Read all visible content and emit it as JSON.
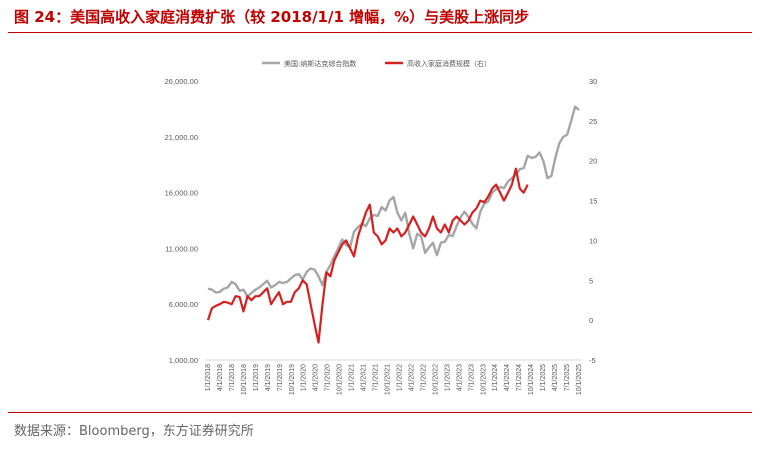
{
  "header": {
    "title": "图 24：美国高收入家庭消费扩张（较 2018/1/1 增幅，%）与美股上涨同步"
  },
  "footer": {
    "source": "数据来源：Bloomberg，东方证券研究所"
  },
  "colors": {
    "accent": "#c00000",
    "series_gray": "#a6a6a6",
    "series_red": "#d42020"
  },
  "chart_data": {
    "type": "line",
    "title": "",
    "xlabel": "",
    "ylabel": "",
    "legend_position": "top",
    "grid": false,
    "y_left": {
      "range": [
        1000,
        26000
      ],
      "ticks": [
        "1,000.00",
        "6,000.00",
        "11,000.00",
        "16,000.00",
        "21,000.00",
        "26,000.00"
      ]
    },
    "y_right": {
      "range": [
        -5,
        30
      ],
      "ticks": [
        "-5",
        "0",
        "5",
        "10",
        "15",
        "20",
        "25",
        "30"
      ]
    },
    "x_ticks": [
      "1/1/2018",
      "4/1/2018",
      "7/1/2018",
      "10/1/2018",
      "1/1/2019",
      "4/1/2019",
      "7/1/2019",
      "10/1/2019",
      "1/1/2020",
      "4/1/2020",
      "7/1/2020",
      "10/1/2020",
      "1/1/2021",
      "4/1/2021",
      "7/1/2021",
      "10/1/2021",
      "1/1/2022",
      "4/1/2022",
      "7/1/2022",
      "10/1/2022",
      "1/1/2023",
      "4/1/2023",
      "7/1/2023",
      "10/1/2023",
      "1/1/2024",
      "4/1/2024",
      "7/1/2024",
      "10/1/2024",
      "1/1/2025",
      "4/1/2025",
      "7/1/2025",
      "10/1/2025"
    ],
    "series": [
      {
        "name": "美国:纳斯达克综合指数",
        "axis": "left",
        "color": "#a6a6a6",
        "values": [
          7400,
          7300,
          7050,
          7100,
          7400,
          7500,
          8000,
          7800,
          7200,
          7300,
          6700,
          7000,
          7300,
          7500,
          7800,
          8100,
          7500,
          7700,
          8000,
          7900,
          8000,
          8300,
          8600,
          8700,
          8200,
          8900,
          9200,
          9100,
          8500,
          7700,
          8900,
          9500,
          10300,
          11000,
          11800,
          11300,
          11100,
          12500,
          12900,
          13200,
          13000,
          13700,
          14000,
          13900,
          14700,
          14400,
          15300,
          15600,
          14200,
          13500,
          14200,
          12300,
          11000,
          12300,
          12100,
          10600,
          11100,
          11500,
          10400,
          11500,
          11600,
          12200,
          12100,
          13000,
          13800,
          14300,
          13800,
          13200,
          12800,
          14300,
          15000,
          15200,
          16000,
          16300,
          16500,
          16400,
          17000,
          17300,
          17600,
          18100,
          18200,
          19300,
          19100,
          19200,
          19600,
          18800,
          17300,
          17500,
          19100,
          20400,
          21000,
          21200,
          22400,
          23700,
          23400
        ]
      },
      {
        "name": "高收入家庭消费规模（右）",
        "axis": "right",
        "color": "#d42020",
        "values": [
          0.0,
          1.5,
          1.8,
          2.0,
          2.3,
          2.2,
          2.0,
          3.0,
          2.9,
          1.1,
          3.0,
          2.5,
          3.0,
          3.0,
          3.5,
          4.0,
          2.0,
          2.8,
          3.5,
          2.0,
          2.3,
          2.3,
          3.5,
          4.0,
          5.0,
          4.5,
          2.0,
          -0.5,
          -2.8,
          2.0,
          6.0,
          5.5,
          7.5,
          8.5,
          9.5,
          10.0,
          9.0,
          8.0,
          10.5,
          12.0,
          13.5,
          14.5,
          11.0,
          10.5,
          9.5,
          10.0,
          11.5,
          11.0,
          11.5,
          10.5,
          11.0,
          12.0,
          13.0,
          12.0,
          11.0,
          10.5,
          11.5,
          13.0,
          11.5,
          11.0,
          12.0,
          11.0,
          12.5,
          13.0,
          12.5,
          12.0,
          12.5,
          13.5,
          14.0,
          15.0,
          14.8,
          15.5,
          16.5,
          17.0,
          16.0,
          15.0,
          16.0,
          17.0,
          19.0,
          16.5,
          16.0,
          17.0
        ]
      }
    ]
  }
}
